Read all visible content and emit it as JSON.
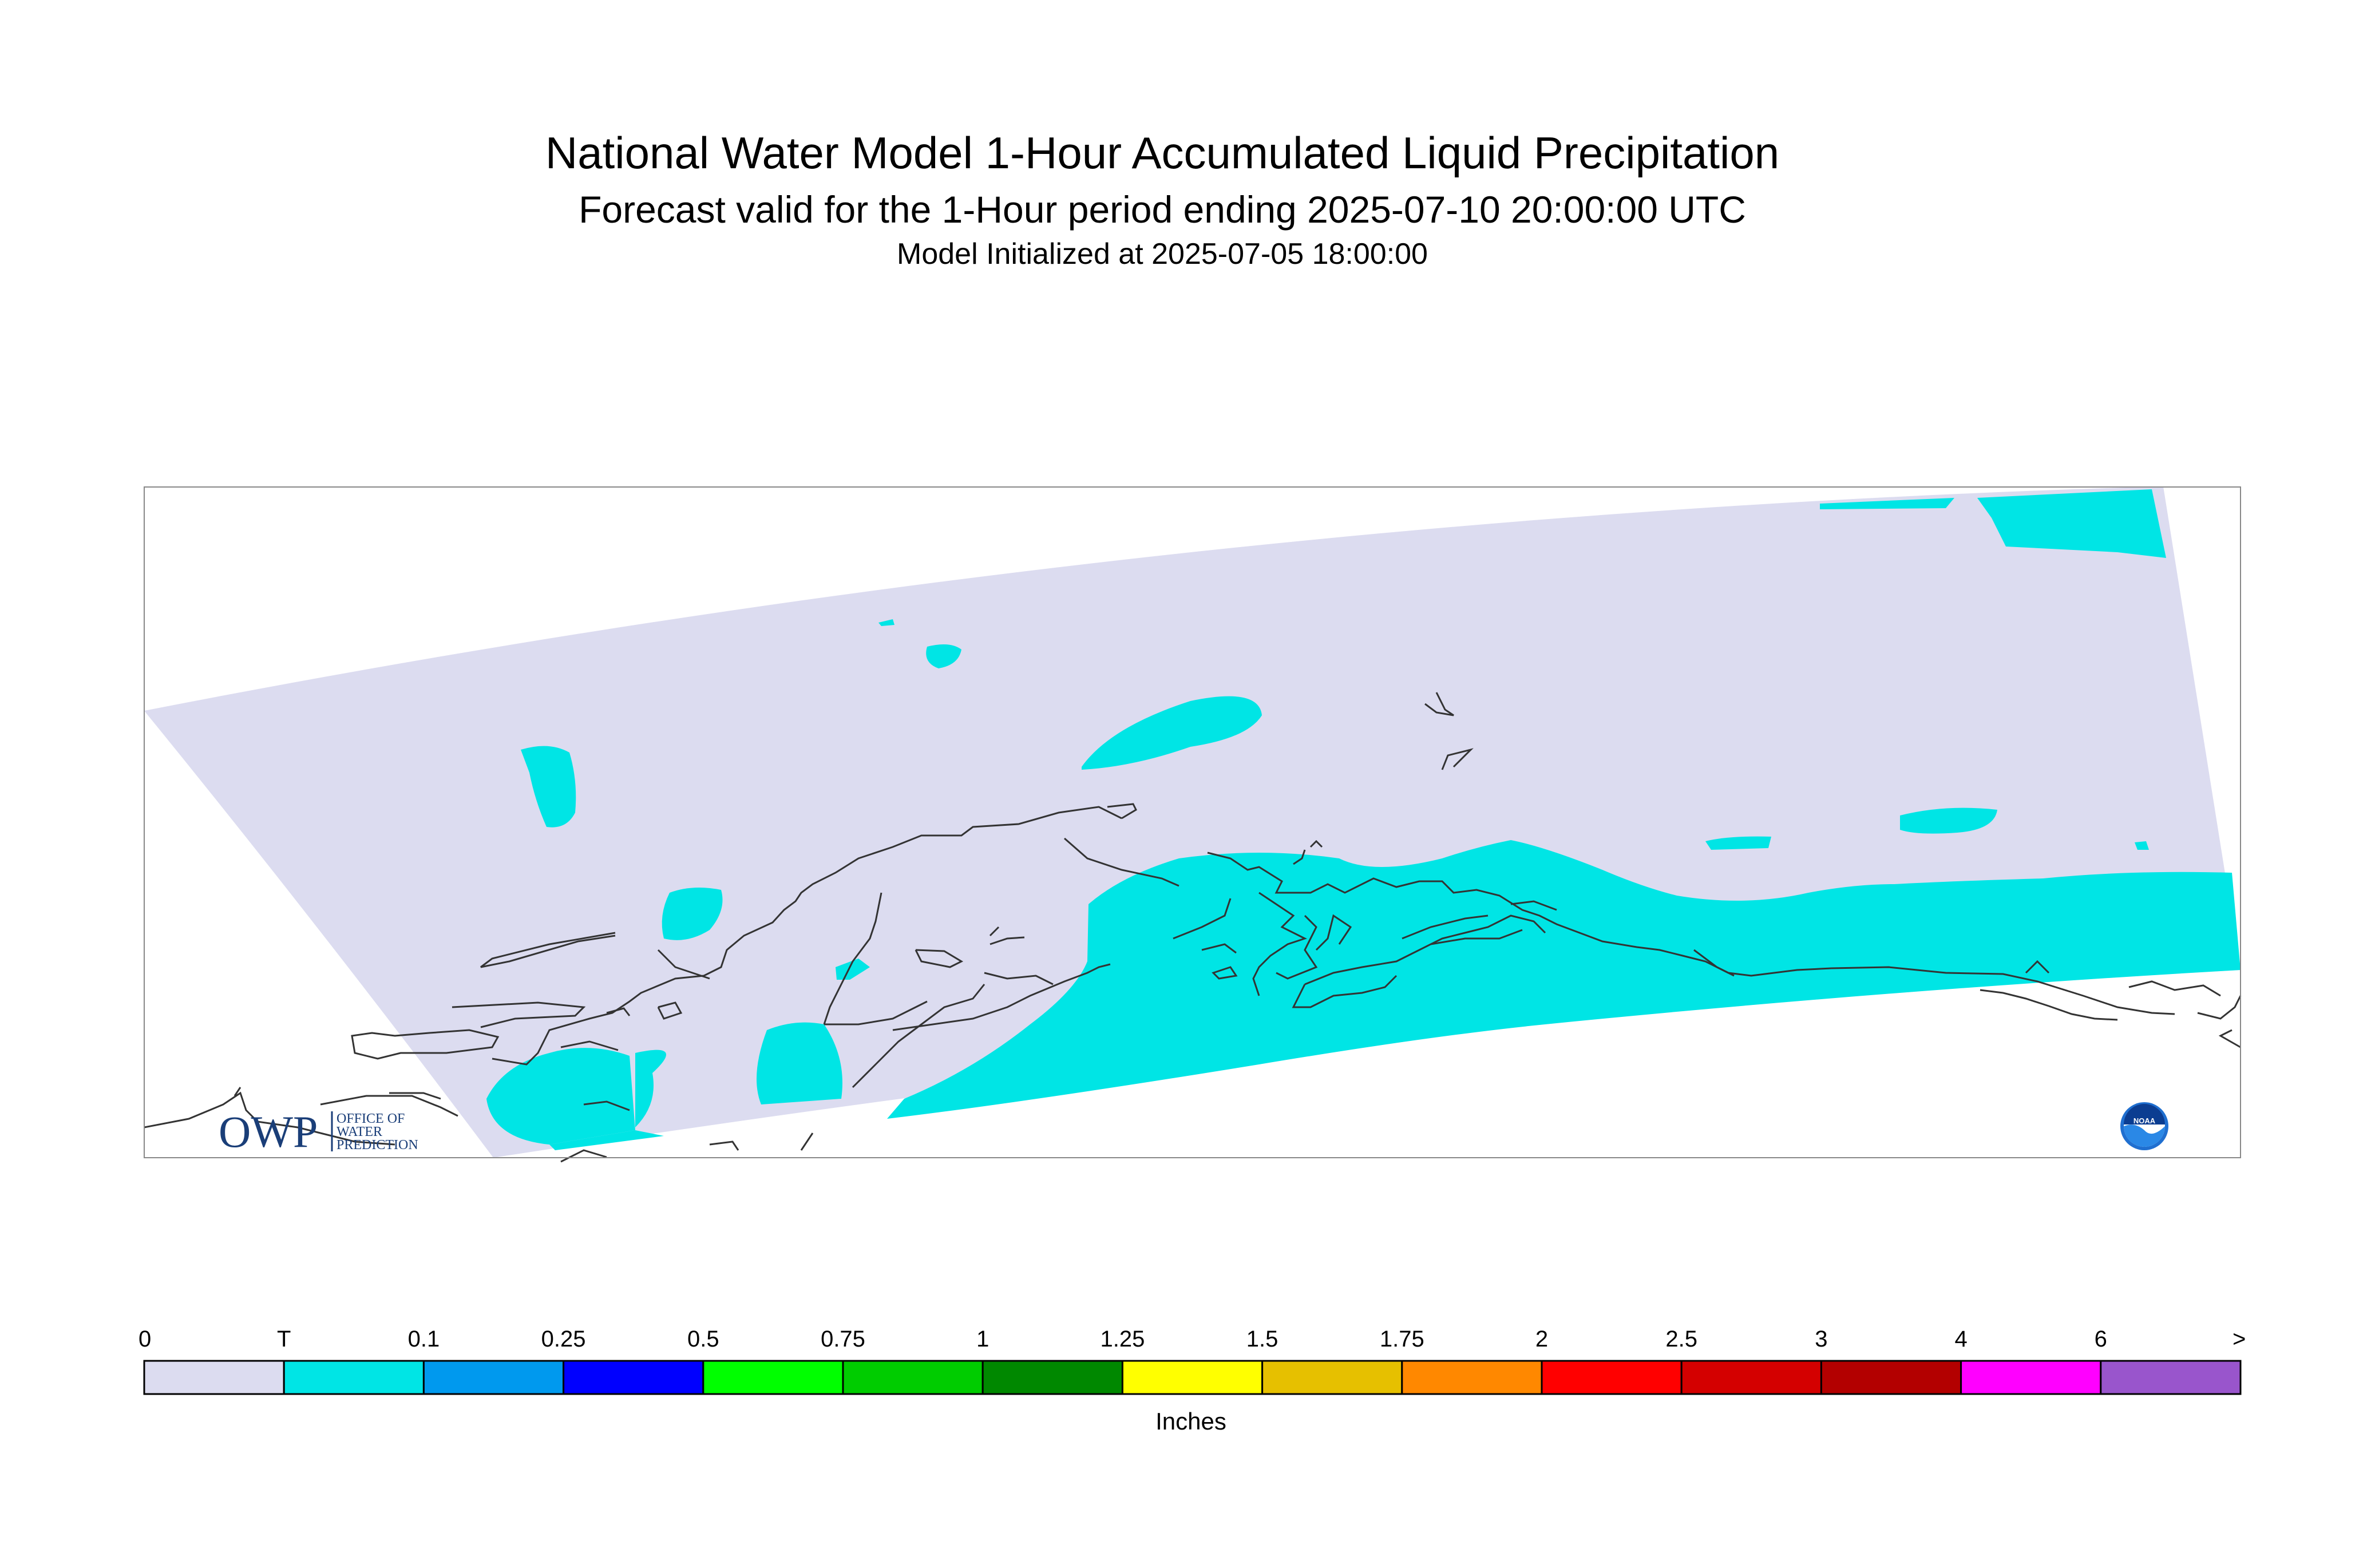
{
  "titles": {
    "main": "National Water Model 1-Hour Accumulated Liquid Precipitation",
    "valid": "Forecast valid for the 1-Hour period ending 2025-07-10 20:00:00 UTC",
    "init": "Model Initialized at 2025-07-05 18:00:00"
  },
  "logos": {
    "owp_mark": "OWP",
    "owp_text": [
      "OFFICE OF",
      "WATER",
      "PREDICTION"
    ],
    "noaa_text": "NOAA"
  },
  "colors": {
    "domain": "#dcdcf0",
    "trace": "#00e5e5",
    "coast": "#333333"
  },
  "legend": {
    "units": "Inches",
    "labels": [
      "0",
      "T",
      "0.1",
      "0.25",
      "0.5",
      "0.75",
      "1",
      "1.25",
      "1.5",
      "1.75",
      "2",
      "2.5",
      "3",
      "4",
      "6",
      ">"
    ],
    "colors": [
      "#dcdcf0",
      "#00e5e5",
      "#0099ee",
      "#0000ff",
      "#00ff00",
      "#00cc00",
      "#008800",
      "#ffff00",
      "#e6c000",
      "#ff8800",
      "#ff0000",
      "#d40000",
      "#b30000",
      "#ff00ff",
      "#9955cc"
    ]
  }
}
